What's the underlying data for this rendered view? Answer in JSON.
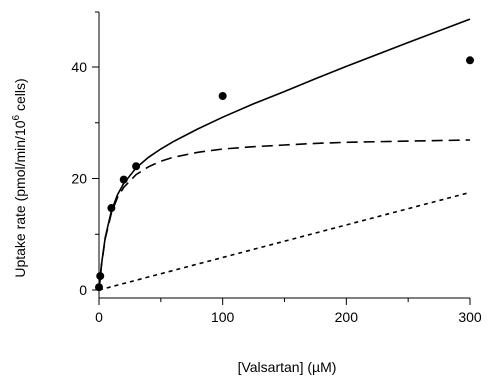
{
  "chart_data": {
    "type": "scatter",
    "title": "",
    "xlabel": "[Valsartan] (µM)",
    "ylabel_parts": {
      "before": "Uptake rate (pmol/min/10",
      "superscript": "6",
      "after": " cells)"
    },
    "xlim": [
      0,
      300
    ],
    "ylim": [
      0,
      45
    ],
    "x_ticks": [
      0,
      100,
      200,
      300
    ],
    "y_ticks": [
      0,
      20,
      40
    ],
    "grid": false,
    "legend": "none",
    "series": [
      {
        "kind": "points",
        "style": "filled-circle",
        "x": [
          0,
          1,
          10,
          20,
          30,
          100,
          300
        ],
        "y": [
          0.5,
          2.5,
          14.7,
          19.8,
          22.2,
          34.8,
          41.2
        ]
      },
      {
        "kind": "line",
        "style": "solid",
        "x": [
          0,
          2,
          5,
          10,
          15,
          20,
          30,
          40,
          50,
          60,
          80,
          100,
          125,
          150,
          175,
          200,
          250,
          300
        ],
        "y": [
          0,
          4.6,
          9.4,
          14.2,
          17.1,
          19.1,
          21.9,
          23.8,
          25.3,
          26.6,
          28.9,
          31.0,
          33.4,
          35.6,
          37.9,
          40.1,
          44.4,
          48.6
        ]
      },
      {
        "kind": "line",
        "style": "long-dash",
        "x": [
          0,
          2,
          5,
          10,
          15,
          20,
          30,
          40,
          50,
          60,
          80,
          100,
          125,
          150,
          175,
          200,
          250,
          300
        ],
        "y": [
          0,
          4.5,
          9.2,
          13.8,
          16.6,
          18.4,
          20.7,
          22.1,
          23.1,
          23.8,
          24.7,
          25.3,
          25.7,
          26.0,
          26.3,
          26.5,
          26.7,
          26.9
        ]
      },
      {
        "kind": "line",
        "style": "short-dash",
        "x": [
          0,
          300
        ],
        "y": [
          0,
          17.5
        ]
      }
    ]
  }
}
